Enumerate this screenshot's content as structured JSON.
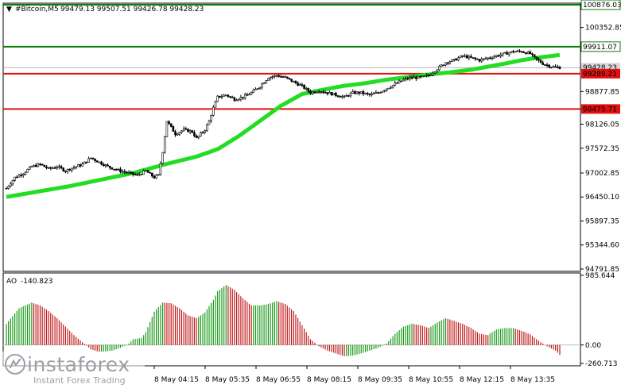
{
  "header": {
    "symbol": "#Bitcoin,M5",
    "ohlc": "99479.13 99507.51 99426.78 99428.23"
  },
  "indicator": {
    "name": "AO",
    "value": "-140.823"
  },
  "logo": {
    "brand": "instaforex",
    "tagline": "Instant Forex Trading"
  },
  "chart_data": [
    {
      "type": "candlestick",
      "title": "#Bitcoin,M5",
      "ylim": [
        94791.85,
        100876.03
      ],
      "y_ticks": [
        "100352.85",
        "99911.07",
        "99428.23",
        "98877.85",
        "98475.71",
        "98126.05",
        "97572.35",
        "97002.85",
        "96450.10",
        "95897.35",
        "95344.60",
        "94791.85"
      ],
      "x_ticks": [
        "8 May 04:15",
        "8 May 05:35",
        "8 May 06:55",
        "8 May 08:15",
        "8 May 09:35",
        "8 May 10:55",
        "8 May 12:15",
        "8 May 13:35"
      ],
      "horizontal_lines": [
        {
          "value": 100876.03,
          "label": "100876.03",
          "color": "#0a7d0a"
        },
        {
          "value": 99911.07,
          "label": "99911.07",
          "color": "#0a7d0a"
        },
        {
          "value": 99289.21,
          "label": "99289.21",
          "color": "#e01010"
        },
        {
          "value": 98475.71,
          "label": "98475.71",
          "color": "#e01010"
        }
      ],
      "current_price": {
        "value": 99428.23,
        "label": "99428.23"
      },
      "price_path": [
        [
          0,
          96650
        ],
        [
          4,
          96900
        ],
        [
          8,
          97000
        ],
        [
          12,
          97150
        ],
        [
          16,
          97200
        ],
        [
          20,
          97100
        ],
        [
          24,
          97150
        ],
        [
          28,
          97050
        ],
        [
          30,
          97100
        ],
        [
          36,
          97200
        ],
        [
          40,
          97350
        ],
        [
          44,
          97250
        ],
        [
          48,
          97150
        ],
        [
          54,
          97050
        ],
        [
          58,
          97000
        ],
        [
          62,
          96950
        ],
        [
          66,
          97050
        ],
        [
          70,
          96900
        ],
        [
          72,
          96950
        ],
        [
          74,
          97500
        ],
        [
          76,
          98200
        ],
        [
          78,
          98050
        ],
        [
          80,
          97900
        ],
        [
          84,
          98000
        ],
        [
          88,
          97950
        ],
        [
          90,
          97800
        ],
        [
          94,
          98000
        ],
        [
          96,
          98200
        ],
        [
          98,
          98500
        ],
        [
          100,
          98750
        ],
        [
          104,
          98800
        ],
        [
          108,
          98700
        ],
        [
          112,
          98750
        ],
        [
          116,
          98850
        ],
        [
          120,
          99000
        ],
        [
          124,
          99200
        ],
        [
          128,
          99250
        ],
        [
          132,
          99200
        ],
        [
          136,
          99100
        ],
        [
          140,
          99000
        ],
        [
          144,
          98850
        ],
        [
          148,
          98900
        ],
        [
          152,
          98850
        ],
        [
          156,
          98800
        ],
        [
          160,
          98750
        ],
        [
          164,
          98850
        ],
        [
          168,
          98850
        ],
        [
          172,
          98800
        ],
        [
          176,
          98850
        ],
        [
          180,
          98950
        ],
        [
          184,
          99050
        ],
        [
          188,
          99150
        ],
        [
          192,
          99200
        ],
        [
          196,
          99200
        ],
        [
          200,
          99250
        ],
        [
          204,
          99400
        ],
        [
          208,
          99550
        ],
        [
          212,
          99600
        ],
        [
          216,
          99700
        ],
        [
          220,
          99650
        ],
        [
          224,
          99600
        ],
        [
          228,
          99650
        ],
        [
          232,
          99700
        ],
        [
          236,
          99750
        ],
        [
          240,
          99800
        ],
        [
          244,
          99800
        ],
        [
          248,
          99750
        ],
        [
          250,
          99650
        ],
        [
          254,
          99520
        ],
        [
          258,
          99450
        ],
        [
          262,
          99428
        ]
      ],
      "moving_average": [
        [
          0,
          96450
        ],
        [
          30,
          96700
        ],
        [
          60,
          97000
        ],
        [
          75,
          97200
        ],
        [
          90,
          97380
        ],
        [
          100,
          97550
        ],
        [
          110,
          97850
        ],
        [
          120,
          98200
        ],
        [
          130,
          98550
        ],
        [
          140,
          98820
        ],
        [
          150,
          98920
        ],
        [
          160,
          99010
        ],
        [
          170,
          99070
        ],
        [
          180,
          99150
        ],
        [
          190,
          99210
        ],
        [
          200,
          99270
        ],
        [
          210,
          99320
        ],
        [
          220,
          99380
        ],
        [
          228,
          99450
        ],
        [
          236,
          99520
        ],
        [
          244,
          99600
        ],
        [
          252,
          99660
        ],
        [
          262,
          99720
        ]
      ]
    },
    {
      "type": "bar",
      "title": "AO",
      "ylim": [
        -260.713,
        985.644
      ],
      "y_ticks": [
        "985.644",
        "0.00",
        "-260.713"
      ],
      "value_label": "-140.823",
      "path": [
        [
          0,
          300
        ],
        [
          6,
          520
        ],
        [
          12,
          600
        ],
        [
          16,
          560
        ],
        [
          20,
          480
        ],
        [
          24,
          380
        ],
        [
          28,
          260
        ],
        [
          32,
          140
        ],
        [
          36,
          40
        ],
        [
          40,
          -60
        ],
        [
          44,
          -100
        ],
        [
          50,
          -80
        ],
        [
          54,
          -40
        ],
        [
          58,
          20
        ],
        [
          60,
          80
        ],
        [
          64,
          100
        ],
        [
          66,
          180
        ],
        [
          70,
          470
        ],
        [
          74,
          600
        ],
        [
          78,
          590
        ],
        [
          82,
          520
        ],
        [
          86,
          420
        ],
        [
          90,
          380
        ],
        [
          94,
          460
        ],
        [
          98,
          640
        ],
        [
          100,
          760
        ],
        [
          104,
          850
        ],
        [
          108,
          780
        ],
        [
          112,
          660
        ],
        [
          116,
          560
        ],
        [
          120,
          560
        ],
        [
          124,
          580
        ],
        [
          128,
          620
        ],
        [
          132,
          580
        ],
        [
          136,
          480
        ],
        [
          140,
          280
        ],
        [
          144,
          80
        ],
        [
          148,
          -20
        ],
        [
          152,
          -80
        ],
        [
          156,
          -120
        ],
        [
          160,
          -160
        ],
        [
          164,
          -150
        ],
        [
          168,
          -120
        ],
        [
          172,
          -80
        ],
        [
          176,
          -40
        ],
        [
          180,
          20
        ],
        [
          184,
          160
        ],
        [
          188,
          260
        ],
        [
          192,
          300
        ],
        [
          196,
          280
        ],
        [
          200,
          240
        ],
        [
          204,
          320
        ],
        [
          208,
          380
        ],
        [
          212,
          340
        ],
        [
          216,
          300
        ],
        [
          220,
          240
        ],
        [
          224,
          160
        ],
        [
          228,
          140
        ],
        [
          232,
          220
        ],
        [
          236,
          240
        ],
        [
          240,
          240
        ],
        [
          244,
          200
        ],
        [
          248,
          150
        ],
        [
          252,
          60
        ],
        [
          256,
          -20
        ],
        [
          260,
          -80
        ],
        [
          262,
          -140.823
        ]
      ]
    }
  ]
}
